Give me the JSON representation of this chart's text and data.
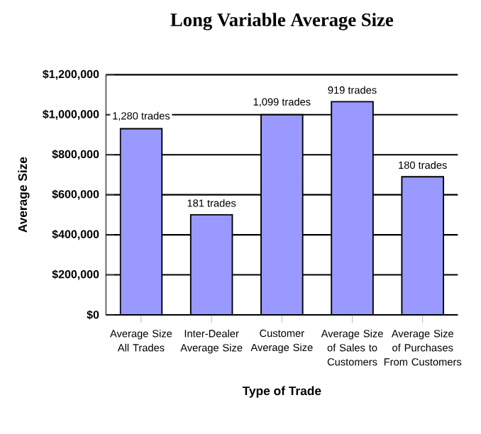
{
  "chart_data": {
    "type": "bar",
    "title": "Long Variable Average Size",
    "xlabel": "Type of Trade",
    "ylabel": "Average Size",
    "categories": [
      "Average Size All Trades",
      "Inter-Dealer Average Size",
      "Customer Average Size",
      "Average Size of Sales to Customers",
      "Average Size of Purchases From Customers"
    ],
    "values": [
      930000,
      500000,
      1000000,
      1065000,
      690000
    ],
    "annotations": [
      {
        "text": "1,280 trades",
        "x": "Average Size All Trades",
        "y": 930000
      },
      {
        "text": "181 trades",
        "x": "Inter-Dealer Average Size",
        "y": 500000
      },
      {
        "text": "1,099 trades",
        "x": "Customer Average Size",
        "y": 1000000
      },
      {
        "text": "919 trades",
        "x": "Average Size of Sales to Customers",
        "y": 1065000
      },
      {
        "text": "180 trades",
        "x": "Average Size of Purchases From Customers",
        "y": 690000
      }
    ],
    "color": "#9999ff",
    "ylim": [
      0,
      1200000
    ],
    "yticks": [
      {
        "value": 0,
        "label": "$0"
      },
      {
        "value": 200000,
        "label": "$200,000"
      },
      {
        "value": 400000,
        "label": "$400,000"
      },
      {
        "value": 600000,
        "label": "$600,000"
      },
      {
        "value": 800000,
        "label": "$800,000"
      },
      {
        "value": 1000000,
        "label": "$1,000,000"
      },
      {
        "value": 1200000,
        "label": "$1,200,000"
      }
    ],
    "grid": "y"
  }
}
